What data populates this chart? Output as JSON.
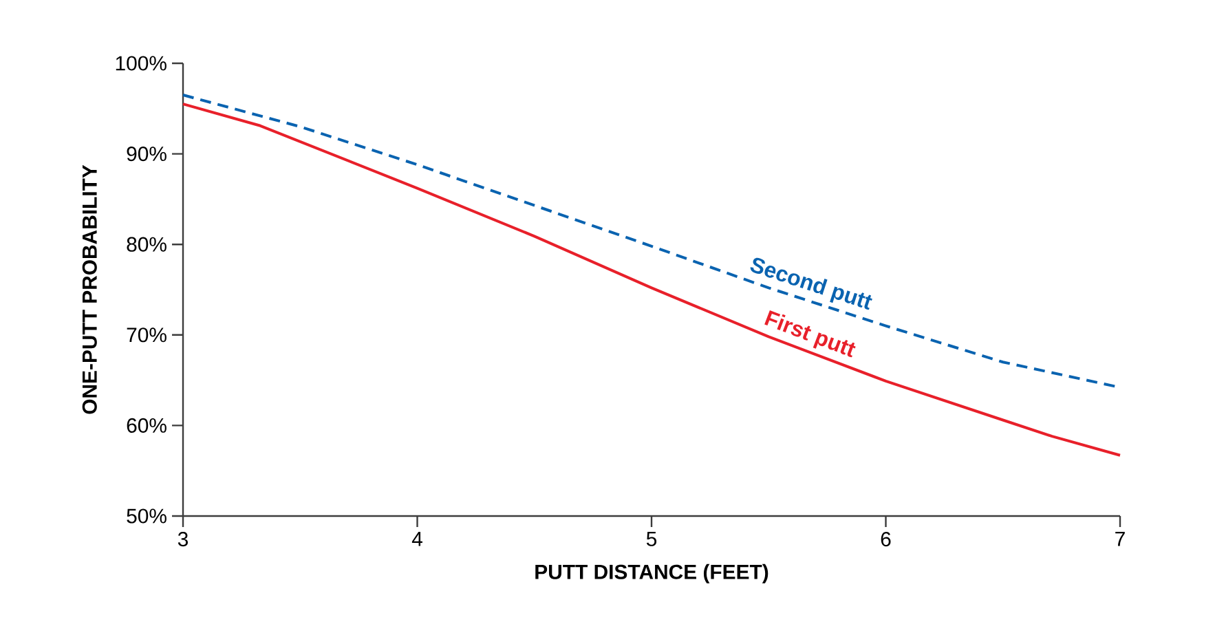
{
  "chart_data": {
    "type": "line",
    "xlabel": "PUTT DISTANCE (FEET)",
    "ylabel": "ONE-PUTT PROBABILITY",
    "xlim": [
      3,
      7
    ],
    "ylim": [
      50,
      100
    ],
    "xticks": [
      3,
      4,
      5,
      6,
      7
    ],
    "yticks": [
      {
        "value": 50,
        "label": "50%"
      },
      {
        "value": 60,
        "label": "60%"
      },
      {
        "value": 70,
        "label": "70%"
      },
      {
        "value": 80,
        "label": "80%"
      },
      {
        "value": 90,
        "label": "90%"
      },
      {
        "value": 100,
        "label": "100%"
      }
    ],
    "grid": false,
    "marker": "none",
    "series": [
      {
        "name": "Second putt",
        "color": "#0a63b0",
        "line_style": "dashed",
        "x": [
          3,
          3.5,
          4,
          4.5,
          5,
          5.5,
          6,
          6.5,
          7
        ],
        "values": [
          96.5,
          93.0,
          88.8,
          84.3,
          79.8,
          75.2,
          71.0,
          67.0,
          64.2
        ]
      },
      {
        "name": "First putt",
        "color": "#e8202a",
        "line_style": "solid",
        "x": [
          3,
          3.33,
          4,
          4.5,
          5,
          5.5,
          6,
          6.5,
          6.71,
          7
        ],
        "values": [
          95.5,
          93.1,
          86.2,
          80.9,
          75.2,
          69.8,
          64.9,
          60.6,
          58.8,
          56.7
        ]
      }
    ]
  }
}
